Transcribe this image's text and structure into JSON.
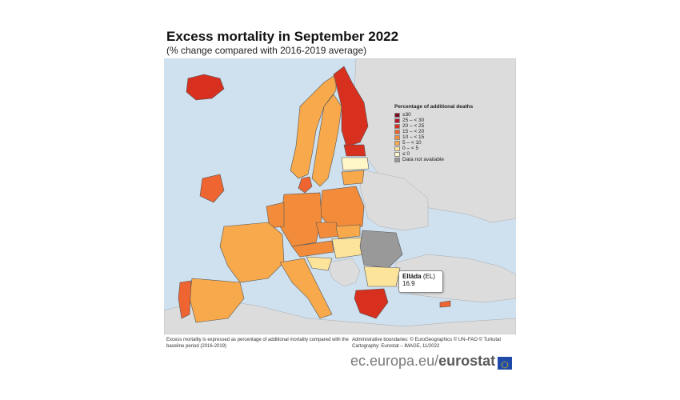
{
  "header": {
    "title": "Excess mortality in September 2022",
    "subtitle": "(% change compared with 2016-2019 average)"
  },
  "legend": {
    "title": "Percentage of additional deaths",
    "items": [
      {
        "label": "≥30",
        "color": "#7a0a1e"
      },
      {
        "label": "25 – < 30",
        "color": "#b3152b"
      },
      {
        "label": "20 – < 25",
        "color": "#d7301f"
      },
      {
        "label": "15 – < 20",
        "color": "#ef6531"
      },
      {
        "label": "10 – < 15",
        "color": "#f28c3b"
      },
      {
        "label": "5 – < 10",
        "color": "#f7a94b"
      },
      {
        "label": "0 – < 5",
        "color": "#fde49b"
      },
      {
        "label": "≤ 0",
        "color": "#fff7c7"
      },
      {
        "label": "Data not available",
        "color": "#999999"
      }
    ]
  },
  "tooltip": {
    "name": "Elláda",
    "code": "(EL)",
    "value": "16.9"
  },
  "footer": {
    "note": "Excess mortality is expressed as percentage of additional mortality compared with the baseline period (2016-2019)",
    "boundaries": "Administrative boundaries: © EuroGeographics © UN–FAO © Turkstat",
    "cartography": "Cartography: Eurostat – IMAGE, 11/2022"
  },
  "brand": {
    "site": "ec.europa.eu/",
    "name": "eurostat"
  },
  "colors": {
    "sea": "#cfe0ef",
    "non_eu_land": "#dcdcdc",
    "border": "#555555"
  }
}
